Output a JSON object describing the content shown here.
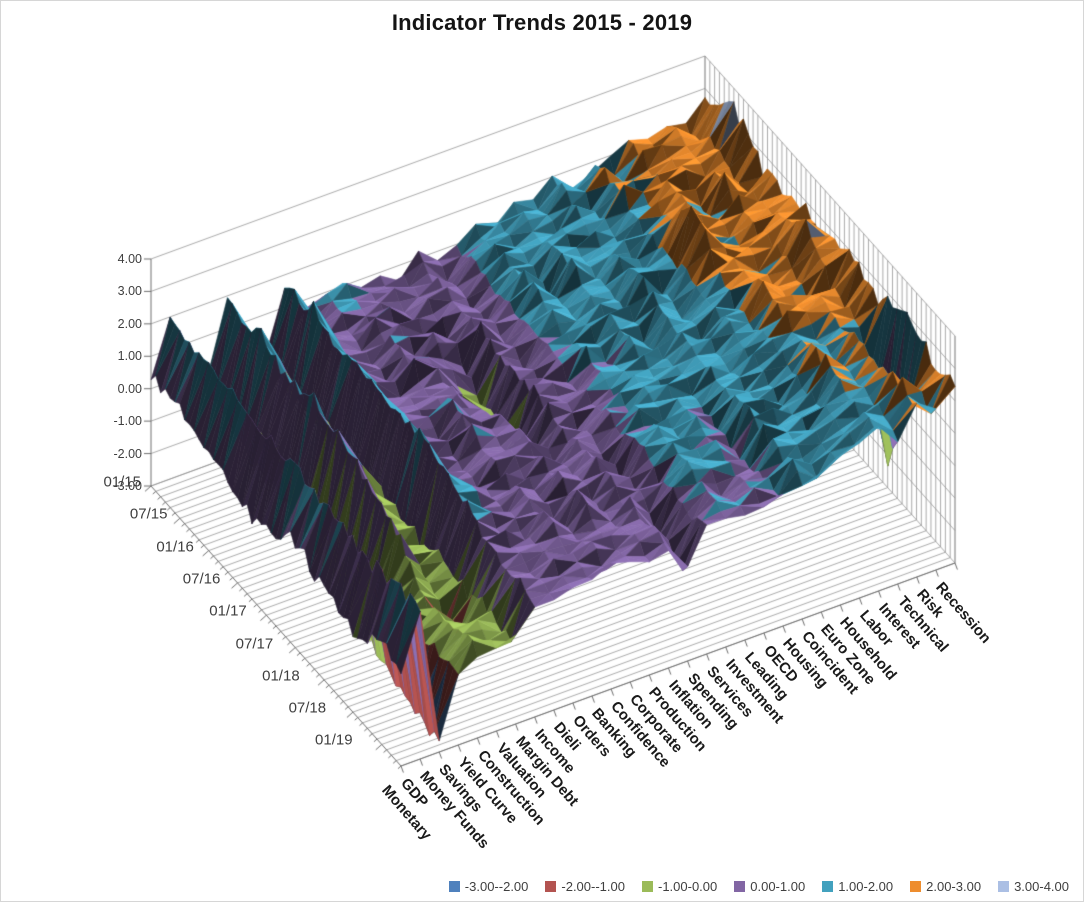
{
  "chart_data": {
    "type": "surface",
    "title": "Indicator Trends 2015 - 2019",
    "x_tick_labels": [
      "01/15",
      "07/15",
      "01/16",
      "07/16",
      "01/17",
      "07/17",
      "01/18",
      "07/18",
      "01/19"
    ],
    "value_axis": {
      "min": -3.0,
      "max": 4.0,
      "step": 1.0,
      "tick_labels": [
        "4.00",
        "3.00",
        "2.00",
        "1.00",
        "0.00",
        "-1.00",
        "-2.00",
        "-3.00"
      ]
    },
    "legend_position": "bottom-right",
    "grid": true,
    "bands": [
      {
        "label": "-3.00--2.00",
        "color": "#4F81BD"
      },
      {
        "label": "-2.00--1.00",
        "color": "#B35350"
      },
      {
        "label": "-1.00-0.00",
        "color": "#9BBB59"
      },
      {
        "label": "0.00-1.00",
        "color": "#8266A4"
      },
      {
        "label": "1.00-2.00",
        "color": "#42A1BE"
      },
      {
        "label": "2.00-3.00",
        "color": "#EE8D2E"
      },
      {
        "label": "3.00-4.00",
        "color": "#ABBFE4"
      }
    ],
    "series": [
      {
        "name": "Monetary",
        "values": [
          0.5,
          0.4,
          0.2,
          -0.5,
          -0.3,
          0.3,
          -0.2,
          -0.6,
          0.1
        ]
      },
      {
        "name": "GDP",
        "values": [
          2.1,
          1.7,
          1.9,
          1.6,
          1.8,
          1.7,
          1.5,
          1.3,
          1.6
        ]
      },
      {
        "name": "Money Funds",
        "values": [
          0.3,
          0.1,
          -0.4,
          -0.6,
          -0.9,
          -1.3,
          -1.7,
          -2.3,
          -2.7
        ]
      },
      {
        "name": "Savings",
        "values": [
          -0.2,
          -0.5,
          -0.4,
          -0.7,
          -1.0,
          -1.4,
          -1.1,
          -0.7,
          -0.9
        ]
      },
      {
        "name": "Yield Curve",
        "values": [
          1.7,
          1.9,
          1.5,
          1.8,
          1.4,
          1.0,
          0.5,
          -0.7,
          -0.3
        ]
      },
      {
        "name": "Construction",
        "values": [
          0.6,
          0.8,
          0.4,
          0.6,
          0.3,
          -0.3,
          -0.7,
          -1.4,
          -0.4
        ]
      },
      {
        "name": "Valuation",
        "values": [
          -0.3,
          -0.6,
          -0.4,
          -0.8,
          -0.5,
          -0.7,
          -0.3,
          -0.6,
          -0.4
        ]
      },
      {
        "name": "Margin Debt",
        "values": [
          1.6,
          1.9,
          1.5,
          1.8,
          1.6,
          1.9,
          1.4,
          0.8,
          0.5
        ]
      },
      {
        "name": "Income",
        "values": [
          0.8,
          0.6,
          0.9,
          0.7,
          0.8,
          0.6,
          0.9,
          0.7,
          0.5
        ]
      },
      {
        "name": "Dieli",
        "values": [
          1.1,
          0.7,
          0.5,
          0.8,
          0.6,
          0.4,
          0.7,
          0.5,
          0.6
        ]
      },
      {
        "name": "Orders",
        "values": [
          1.3,
          0.9,
          1.2,
          0.8,
          1.1,
          0.9,
          0.6,
          0.9,
          0.7
        ]
      },
      {
        "name": "Banking",
        "values": [
          0.7,
          0.9,
          0.6,
          0.8,
          0.5,
          0.8,
          0.6,
          0.4,
          0.7
        ]
      },
      {
        "name": "Confidence",
        "values": [
          0.9,
          0.6,
          0.8,
          -0.4,
          0.7,
          0.9,
          0.7,
          0.9,
          0.6
        ]
      },
      {
        "name": "Corporate",
        "values": [
          0.5,
          0.8,
          0.4,
          -0.5,
          -0.3,
          0.3,
          0.6,
          0.4,
          0.6
        ]
      },
      {
        "name": "Production",
        "values": [
          1.2,
          0.8,
          1.0,
          0.7,
          0.9,
          0.6,
          0.8,
          0.6,
          0.8
        ]
      },
      {
        "name": "Inflation",
        "values": [
          0.6,
          0.4,
          0.7,
          0.5,
          0.8,
          0.5,
          0.3,
          0.6,
          -0.2
        ]
      },
      {
        "name": "Spending",
        "values": [
          0.9,
          1.1,
          0.8,
          1.0,
          0.7,
          0.9,
          1.1,
          0.8,
          0.9
        ]
      },
      {
        "name": "Services",
        "values": [
          1.4,
          1.2,
          1.5,
          1.1,
          1.3,
          1.0,
          1.2,
          1.4,
          1.1
        ]
      },
      {
        "name": "Investment",
        "values": [
          1.1,
          1.3,
          0.9,
          1.2,
          1.0,
          1.3,
          0.9,
          1.1,
          0.8
        ]
      },
      {
        "name": "Leading",
        "values": [
          1.6,
          1.4,
          1.7,
          1.3,
          1.5,
          1.2,
          1.4,
          1.1,
          0.9
        ]
      },
      {
        "name": "OECD",
        "values": [
          1.3,
          1.5,
          1.2,
          1.4,
          1.1,
          1.3,
          0.9,
          0.7,
          0.9
        ]
      },
      {
        "name": "Housing",
        "values": [
          2.2,
          1.8,
          1.6,
          1.9,
          1.5,
          1.7,
          1.4,
          1.6,
          1.3
        ]
      },
      {
        "name": "Coincident",
        "values": [
          1.5,
          1.7,
          1.4,
          1.6,
          1.3,
          1.5,
          1.2,
          1.4,
          1.1
        ]
      },
      {
        "name": "Euro Zone",
        "values": [
          1.9,
          2.3,
          1.7,
          2.0,
          1.6,
          1.8,
          1.5,
          1.2,
          1.4
        ]
      },
      {
        "name": "Household",
        "values": [
          1.7,
          1.9,
          2.1,
          3.3,
          1.8,
          1.6,
          1.9,
          1.5,
          1.7
        ]
      },
      {
        "name": "Labor",
        "values": [
          2.3,
          2.1,
          2.4,
          2.0,
          2.2,
          2.5,
          2.1,
          2.3,
          1.9
        ]
      },
      {
        "name": "Interest",
        "values": [
          2.0,
          2.4,
          1.8,
          2.1,
          1.9,
          2.2,
          1.7,
          1.9,
          1.6
        ]
      },
      {
        "name": "Technical",
        "values": [
          2.5,
          2.2,
          2.6,
          2.1,
          2.4,
          2.0,
          2.3,
          2.1,
          2.4
        ]
      },
      {
        "name": "Risk",
        "values": [
          2.1,
          2.4,
          2.0,
          2.3,
          3.3,
          2.1,
          1.8,
          -1.3,
          1.9
        ]
      },
      {
        "name": "Recession",
        "values": [
          2.7,
          3.5,
          2.4,
          2.8,
          2.5,
          2.9,
          2.6,
          3.0,
          2.4
        ]
      }
    ]
  }
}
